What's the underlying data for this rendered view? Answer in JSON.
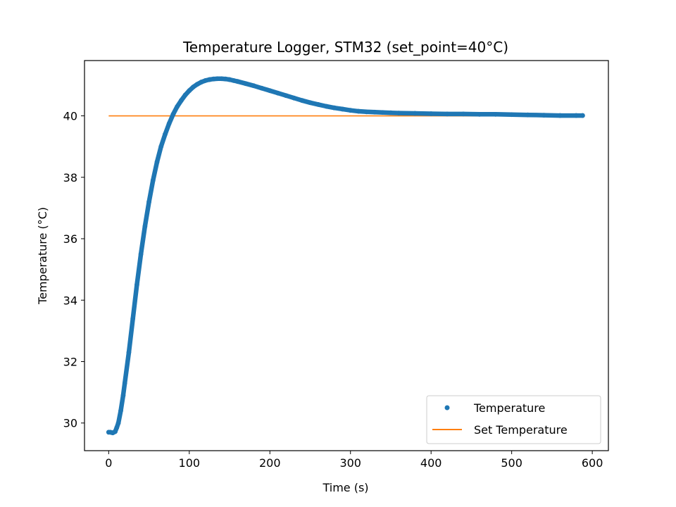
{
  "chart_data": {
    "type": "scatter",
    "title": "Temperature Logger, STM32 (set_point=40°C)",
    "xlabel": "Time (s)",
    "ylabel": "Temperature (°C)",
    "xlim": [
      -30,
      620
    ],
    "ylim": [
      29.1,
      41.8
    ],
    "x_ticks": [
      0,
      100,
      200,
      300,
      400,
      500,
      600
    ],
    "y_ticks": [
      30,
      32,
      34,
      36,
      38,
      40
    ],
    "grid": false,
    "legend_position": "bottom-right",
    "series": [
      {
        "name": "Temperature",
        "kind": "points",
        "color": "#1f77b4",
        "x": [
          0,
          2,
          5,
          8,
          10,
          12,
          15,
          18,
          20,
          25,
          30,
          35,
          40,
          45,
          50,
          55,
          60,
          65,
          70,
          75,
          80,
          85,
          90,
          95,
          100,
          105,
          110,
          115,
          120,
          125,
          130,
          135,
          140,
          145,
          150,
          155,
          160,
          170,
          180,
          190,
          200,
          210,
          220,
          230,
          240,
          250,
          260,
          270,
          280,
          290,
          300,
          310,
          320,
          330,
          340,
          350,
          360,
          380,
          400,
          420,
          440,
          460,
          480,
          500,
          520,
          540,
          560,
          580,
          588
        ],
        "y": [
          29.7,
          29.7,
          29.68,
          29.72,
          29.85,
          30.0,
          30.4,
          30.9,
          31.3,
          32.3,
          33.4,
          34.5,
          35.5,
          36.4,
          37.2,
          37.9,
          38.5,
          39.0,
          39.4,
          39.75,
          40.05,
          40.3,
          40.5,
          40.68,
          40.82,
          40.94,
          41.03,
          41.1,
          41.15,
          41.18,
          41.2,
          41.21,
          41.21,
          41.2,
          41.18,
          41.15,
          41.12,
          41.05,
          40.98,
          40.9,
          40.82,
          40.74,
          40.66,
          40.58,
          40.5,
          40.43,
          40.37,
          40.31,
          40.26,
          40.22,
          40.18,
          40.15,
          40.13,
          40.12,
          40.11,
          40.1,
          40.09,
          40.08,
          40.07,
          40.06,
          40.06,
          40.05,
          40.05,
          40.04,
          40.03,
          40.02,
          40.01,
          40.01,
          40.01
        ]
      },
      {
        "name": "Set Temperature",
        "kind": "line",
        "color": "#ff7f0e",
        "x": [
          0,
          588
        ],
        "y": [
          40,
          40
        ]
      }
    ]
  }
}
